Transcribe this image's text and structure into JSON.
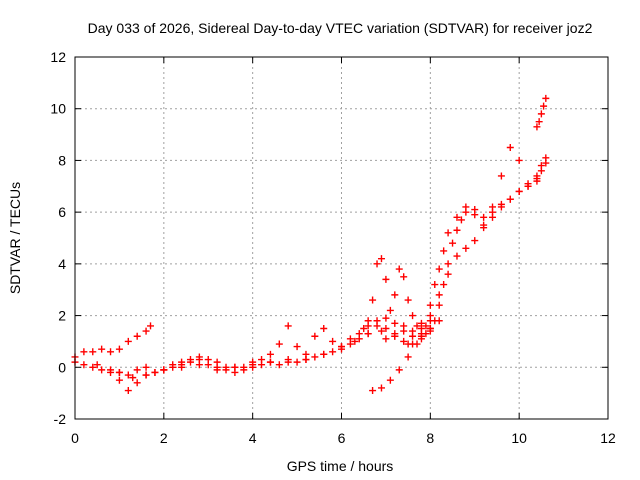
{
  "chart_data": {
    "type": "scatter",
    "title": "Day 033 of 2026, Sidereal Day-to-day VTEC variation (SDTVAR) for receiver joz2",
    "xlabel": "GPS time / hours",
    "ylabel": "SDTVAR / TECUs",
    "xlim": [
      0,
      12
    ],
    "ylim": [
      -2,
      12
    ],
    "x_ticks": [
      0,
      2,
      4,
      6,
      8,
      10,
      12
    ],
    "y_ticks": [
      -2,
      0,
      2,
      4,
      6,
      8,
      10,
      12
    ],
    "x_tick_labels": [
      "0",
      "2",
      "4",
      "6",
      "8",
      "10",
      "12"
    ],
    "y_tick_labels": [
      "-2",
      "0",
      "2",
      "4",
      "6",
      "8",
      "10",
      "12"
    ],
    "grid": true,
    "marker": "+",
    "color": "#ff0000",
    "series": [
      {
        "x": [
          0.0,
          0.2,
          0.4,
          0.6,
          0.8,
          1.0,
          1.2,
          1.4,
          1.6,
          1.7
        ],
        "y": [
          0.4,
          0.6,
          0.6,
          0.7,
          0.6,
          0.7,
          1.0,
          1.2,
          1.4,
          1.6
        ]
      },
      {
        "x": [
          0.0,
          0.2,
          0.4,
          0.6,
          0.8,
          1.0,
          1.2,
          1.4,
          1.6,
          1.8,
          2.0,
          2.2,
          2.4,
          2.6,
          2.8,
          3.0,
          3.2,
          3.4,
          3.6,
          3.8,
          4.0,
          4.2,
          4.4,
          4.6,
          4.8,
          5.0,
          5.2,
          5.4,
          5.6,
          5.8,
          6.0,
          6.2,
          6.4,
          6.6,
          6.8,
          7.0,
          7.2,
          7.4,
          7.6,
          7.8,
          8.0
        ],
        "y": [
          0.2,
          0.1,
          0.0,
          -0.1,
          -0.2,
          -0.5,
          -0.9,
          -0.6,
          -0.3,
          -0.2,
          -0.1,
          0.0,
          0.1,
          0.2,
          0.3,
          0.1,
          0.0,
          -0.1,
          0.0,
          -0.1,
          0.0,
          0.1,
          0.2,
          0.1,
          0.3,
          0.2,
          0.3,
          0.4,
          0.5,
          0.6,
          0.7,
          0.9,
          1.1,
          1.3,
          1.6,
          1.5,
          1.2,
          1.0,
          0.9,
          1.1,
          1.4
        ]
      },
      {
        "x": [
          0.5,
          0.8,
          1.0,
          1.2,
          1.4,
          1.6,
          1.8,
          2.0,
          2.2,
          2.4,
          2.6,
          2.8,
          3.0,
          3.2,
          3.4,
          3.6,
          3.8,
          4.0,
          4.2,
          4.4,
          4.6,
          4.8,
          5.0,
          5.2,
          5.4,
          5.6,
          5.8,
          6.0,
          6.2,
          6.4,
          6.6,
          6.8,
          7.0,
          7.2,
          7.4,
          7.6,
          7.8,
          8.0
        ],
        "y": [
          0.1,
          -0.1,
          -0.2,
          -0.3,
          -0.1,
          0.0,
          -0.2,
          -0.1,
          0.1,
          0.2,
          0.3,
          0.4,
          0.3,
          0.2,
          0.0,
          -0.2,
          0.0,
          0.2,
          0.3,
          0.5,
          0.9,
          1.6,
          0.8,
          0.5,
          1.2,
          1.5,
          1.0,
          0.8,
          1.1,
          1.3,
          1.6,
          1.8,
          1.9,
          1.7,
          1.4,
          1.2,
          1.5,
          1.8
        ]
      },
      {
        "x": [
          1.0,
          1.3,
          1.6,
          2.0,
          2.4,
          2.8,
          3.2,
          3.6,
          4.0,
          4.4,
          4.8,
          5.2,
          5.6,
          6.0,
          6.3,
          6.6,
          6.9,
          7.2,
          7.5,
          7.8,
          8.0,
          8.2
        ],
        "y": [
          -0.2,
          -0.4,
          -0.3,
          -0.1,
          0.0,
          0.1,
          -0.1,
          0.0,
          0.1,
          0.2,
          0.2,
          0.3,
          0.5,
          0.8,
          1.0,
          1.3,
          1.4,
          1.2,
          0.9,
          1.2,
          1.5,
          1.8
        ]
      },
      {
        "x": [
          6.5,
          6.6,
          6.7,
          6.8,
          6.9,
          7.0,
          7.1,
          7.2,
          7.3,
          7.4,
          7.5,
          7.6,
          7.7,
          7.8,
          7.9,
          8.0,
          8.1,
          8.2,
          8.3,
          8.4,
          8.6,
          8.8,
          9.0,
          9.2,
          9.4,
          9.6,
          9.8,
          10.0,
          10.2,
          10.4,
          10.5
        ],
        "y": [
          1.5,
          1.8,
          2.6,
          4.0,
          4.2,
          3.4,
          2.2,
          2.8,
          3.8,
          3.5,
          2.6,
          2.0,
          1.6,
          1.3,
          1.6,
          2.4,
          3.2,
          3.8,
          4.5,
          5.2,
          5.8,
          6.2,
          6.1,
          5.8,
          6.0,
          6.3,
          6.5,
          6.8,
          7.0,
          7.3,
          7.6
        ]
      },
      {
        "x": [
          6.7,
          6.9,
          7.1,
          7.3,
          7.5,
          7.7,
          7.9,
          8.0,
          8.1,
          8.2,
          8.3,
          8.4,
          8.5,
          8.6,
          8.7,
          8.8,
          9.0,
          9.2,
          9.4,
          9.6,
          9.8,
          10.0,
          10.2,
          10.4,
          10.6
        ],
        "y": [
          -0.9,
          -0.8,
          -0.5,
          -0.1,
          0.4,
          0.9,
          1.3,
          1.5,
          1.8,
          2.4,
          3.2,
          4.0,
          4.8,
          5.3,
          5.7,
          6.0,
          5.9,
          5.5,
          5.8,
          6.2,
          6.5,
          6.8,
          7.1,
          7.4,
          7.9
        ]
      },
      {
        "x": [
          7.0,
          7.2,
          7.4,
          7.6,
          7.8,
          8.0,
          8.2,
          8.4,
          8.6,
          8.8,
          9.0,
          9.2,
          9.4,
          9.6,
          9.8,
          10.0,
          10.2,
          10.4,
          10.5,
          10.6
        ],
        "y": [
          1.1,
          1.3,
          1.6,
          1.4,
          1.7,
          2.0,
          2.8,
          3.6,
          4.3,
          4.6,
          4.9,
          5.4,
          6.2,
          7.4,
          8.5,
          8.0,
          7.0,
          7.2,
          7.8,
          8.1
        ]
      },
      {
        "x": [
          10.4,
          10.45,
          10.5,
          10.55,
          10.6
        ],
        "y": [
          9.3,
          9.5,
          9.8,
          10.1,
          10.4
        ]
      }
    ]
  }
}
